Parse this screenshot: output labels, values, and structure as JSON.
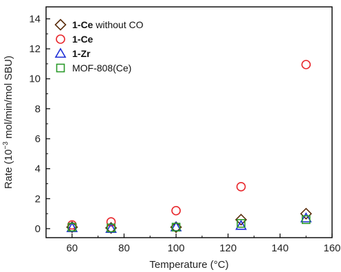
{
  "chart_data": {
    "type": "scatter",
    "xlabel": "Temperature (°C)",
    "ylabel_parts": [
      "Rate (10",
      "−3",
      " mol/min/mol SBU)"
    ],
    "xlim": [
      50,
      160
    ],
    "ylim": [
      -0.6,
      14.8
    ],
    "xticks": [
      60,
      80,
      100,
      120,
      140,
      160
    ],
    "yticks": [
      0,
      2,
      4,
      6,
      8,
      10,
      12,
      14
    ],
    "grid": false,
    "legend_position": "top-left",
    "series": [
      {
        "name_bold": "1-Ce",
        "name_rest": " without CO",
        "marker": "diamond",
        "color": "#5a2d0c",
        "x": [
          60,
          75,
          100,
          125,
          150
        ],
        "y": [
          0.1,
          0.05,
          0.1,
          0.6,
          1.0
        ]
      },
      {
        "name_bold": "1-Ce",
        "name_rest": "",
        "marker": "circle",
        "color": "#e8262b",
        "x": [
          60,
          75,
          100,
          125,
          150
        ],
        "y": [
          0.25,
          0.45,
          1.2,
          2.8,
          10.95
        ]
      },
      {
        "name_bold": "1-Zr",
        "name_rest": "",
        "marker": "triangle",
        "color": "#1f2fd6",
        "x": [
          60,
          75,
          100,
          125,
          150
        ],
        "y": [
          0.05,
          0.0,
          0.1,
          0.2,
          0.7
        ]
      },
      {
        "name_bold": "",
        "name_rest": "MOF-808(Ce)",
        "marker": "square",
        "color": "#2a9a2a",
        "x": [
          60,
          75,
          100,
          125,
          150
        ],
        "y": [
          0.1,
          0.05,
          0.1,
          0.35,
          0.6
        ]
      }
    ]
  }
}
